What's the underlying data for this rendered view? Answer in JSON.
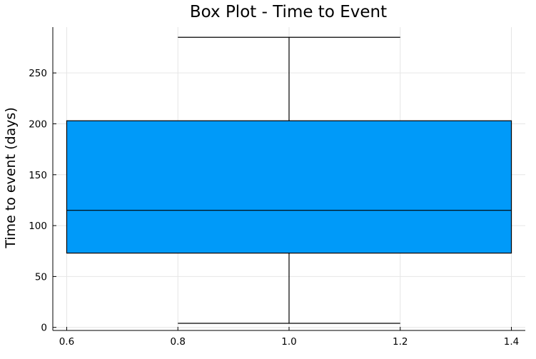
{
  "chart_data": {
    "type": "box",
    "title": "Box Plot - Time to Event",
    "xlabel": "",
    "ylabel": "Time to event (days)",
    "xlim": [
      0.575,
      1.425
    ],
    "ylim": [
      -3,
      295
    ],
    "xticks": [
      0.6,
      0.8,
      1.0,
      1.2,
      1.4
    ],
    "xtick_labels": [
      "0.6",
      "0.8",
      "1.0",
      "1.2",
      "1.4"
    ],
    "yticks": [
      0,
      50,
      100,
      150,
      200,
      250
    ],
    "ytick_labels": [
      "0",
      "50",
      "100",
      "150",
      "200",
      "250"
    ],
    "grid": true,
    "legend": "none",
    "series": [
      {
        "x": 1.0,
        "box_left": 0.6,
        "box_right": 1.4,
        "whisker_left": 0.8,
        "whisker_right": 1.2,
        "min": 4,
        "q1": 73,
        "median": 115,
        "q3": 203,
        "max": 285,
        "color": "#009af9"
      }
    ]
  }
}
